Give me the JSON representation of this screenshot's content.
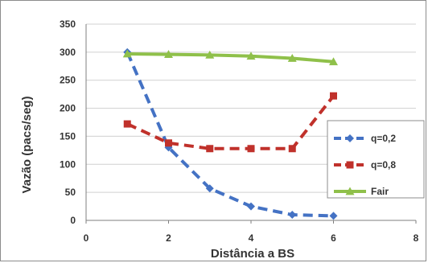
{
  "chart_data": {
    "type": "scatter",
    "xlabel": "Distância a BS",
    "ylabel": "Vazão (pacs/seg)",
    "xlim": [
      0,
      8
    ],
    "ylim": [
      0,
      350
    ],
    "x_ticks": [
      "0",
      "2",
      "4",
      "6",
      "8"
    ],
    "y_ticks": [
      "0",
      "50",
      "100",
      "150",
      "200",
      "250",
      "300",
      "350"
    ],
    "grid": "horizontal",
    "legend_position": "right",
    "series": [
      {
        "name": "q=0,2",
        "color": "#4472c4",
        "line": "dashed",
        "marker": "diamond",
        "x": [
          1,
          2,
          3,
          4,
          5,
          6
        ],
        "y": [
          300,
          130,
          57,
          25,
          10,
          8
        ]
      },
      {
        "name": "q=0,8",
        "color": "#c0312b",
        "line": "dashed",
        "marker": "square",
        "x": [
          1,
          2,
          3,
          4,
          5,
          6
        ],
        "y": [
          172,
          138,
          128,
          128,
          128,
          222
        ]
      },
      {
        "name": "Fair",
        "color": "#8fc04a",
        "line": "solid",
        "marker": "triangle",
        "x": [
          1,
          2,
          3,
          4,
          5,
          6
        ],
        "y": [
          297,
          296,
          295,
          293,
          289,
          283
        ]
      }
    ]
  }
}
